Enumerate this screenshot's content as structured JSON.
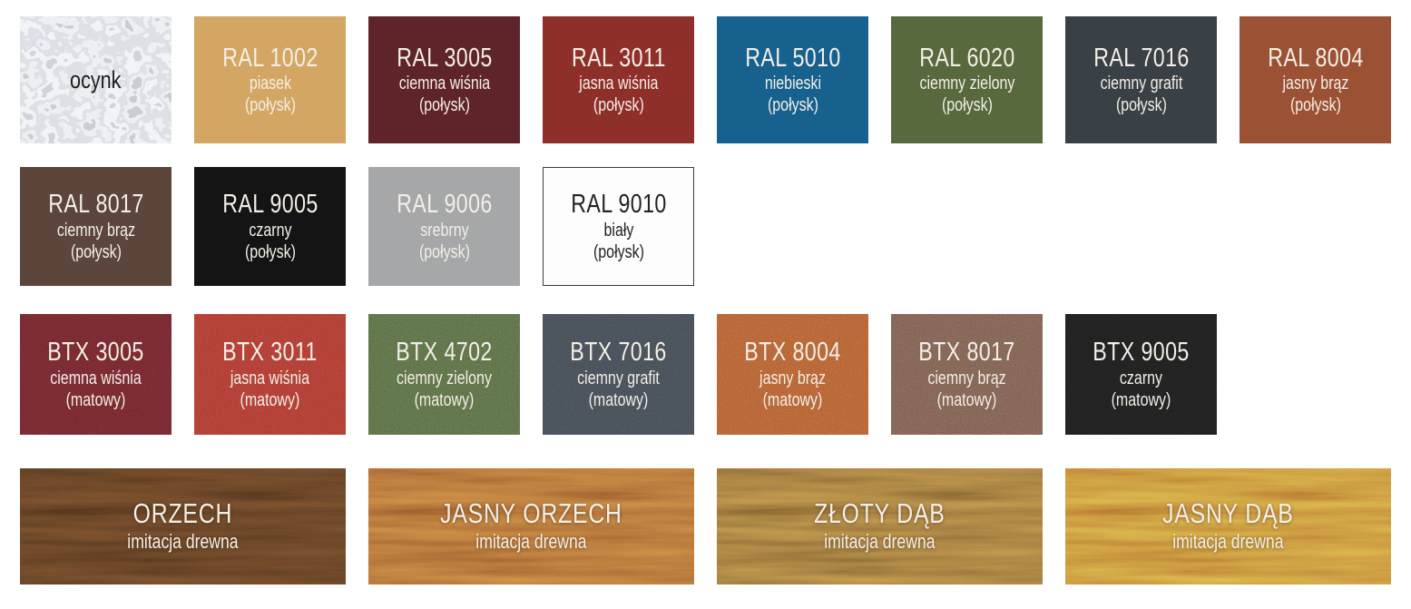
{
  "default_text_color": "#f3efe7",
  "rows": [
    {
      "tiles": [
        {
          "code": "ocynk",
          "name": "",
          "finish": "",
          "texture": "galvanized",
          "bg": "#c9ced3",
          "fg": "#1e1e1e"
        },
        {
          "code": "RAL 1002",
          "name": "piasek",
          "finish": "(połysk)",
          "texture": "solid",
          "bg": "#d3a763"
        },
        {
          "code": "RAL 3005",
          "name": "ciemna wiśnia",
          "finish": "(połysk)",
          "texture": "solid",
          "bg": "#5e2429"
        },
        {
          "code": "RAL 3011",
          "name": "jasna wiśnia",
          "finish": "(połysk)",
          "texture": "solid",
          "bg": "#8f2f2a"
        },
        {
          "code": "RAL 5010",
          "name": "niebieski",
          "finish": "(połysk)",
          "texture": "solid",
          "bg": "#17618e"
        },
        {
          "code": "RAL 6020",
          "name": "ciemny zielony",
          "finish": "(połysk)",
          "texture": "solid",
          "bg": "#57693d"
        },
        {
          "code": "RAL 7016",
          "name": "ciemny grafit",
          "finish": "(połysk)",
          "texture": "solid",
          "bg": "#394046"
        },
        {
          "code": "RAL 8004",
          "name": "jasny brąz",
          "finish": "(połysk)",
          "texture": "solid",
          "bg": "#9b5134"
        }
      ]
    },
    {
      "tiles": [
        {
          "code": "RAL 8017",
          "name": "ciemny brąz",
          "finish": "(połysk)",
          "texture": "solid",
          "bg": "#5c463c"
        },
        {
          "code": "RAL 9005",
          "name": "czarny",
          "finish": "(połysk)",
          "texture": "solid",
          "bg": "#141414"
        },
        {
          "code": "RAL 9006",
          "name": "srebrny",
          "finish": "(połysk)",
          "texture": "solid",
          "bg": "#a6a7a9"
        },
        {
          "code": "RAL 9010",
          "name": "biały",
          "finish": "(połysk)",
          "texture": "solid",
          "bg": "#fdfdfd",
          "fg": "#232323",
          "border": "#3c3c3c"
        }
      ]
    },
    {
      "tiles": [
        {
          "code": "BTX 3005",
          "name": "ciemna wiśnia",
          "finish": "(matowy)",
          "texture": "matte",
          "bg": "#642329"
        },
        {
          "code": "BTX 3011",
          "name": "jasna wiśnia",
          "finish": "(matowy)",
          "texture": "matte",
          "bg": "#9c352d"
        },
        {
          "code": "BTX 4702",
          "name": "ciemny zielony",
          "finish": "(matowy)",
          "texture": "matte",
          "bg": "#50603e"
        },
        {
          "code": "BTX 7016",
          "name": "ciemny grafit",
          "finish": "(matowy)",
          "texture": "matte",
          "bg": "#3d444b"
        },
        {
          "code": "BTX 8004",
          "name": "jasny brąz",
          "finish": "(matowy)",
          "texture": "matte",
          "bg": "#a4552e"
        },
        {
          "code": "BTX 8017",
          "name": "ciemny brąz",
          "finish": "(matowy)",
          "texture": "matte",
          "bg": "#6d5448"
        },
        {
          "code": "BTX 9005",
          "name": "czarny",
          "finish": "(matowy)",
          "texture": "matte",
          "bg": "#1c1c1c"
        }
      ]
    },
    {
      "tiles": [
        {
          "code": "ORZECH",
          "name": "imitacja drewna",
          "finish": "",
          "texture": "wood",
          "bg": "#573920"
        },
        {
          "code": "JASNY ORZECH",
          "name": "imitacja drewna",
          "finish": "",
          "texture": "wood",
          "bg": "#a36331"
        },
        {
          "code": "ZŁOTY DĄB",
          "name": "imitacja drewna",
          "finish": "",
          "texture": "wood",
          "bg": "#8e6a36"
        },
        {
          "code": "JASNY DĄB",
          "name": "imitacja drewna",
          "finish": "",
          "texture": "wood",
          "bg": "#bc7e35"
        }
      ]
    }
  ]
}
